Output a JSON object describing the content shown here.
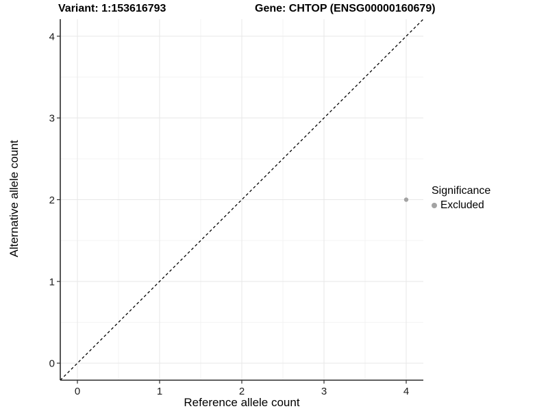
{
  "chart_data": {
    "type": "scatter",
    "title_left": "Variant: 1:153616793",
    "title_right": "Gene: CHTOP (ENSG00000160679)",
    "xlabel": "Reference allele count",
    "ylabel": "Alternative allele count",
    "xlim": [
      -0.2083,
      4.2083
    ],
    "ylim": [
      -0.2083,
      4.2083
    ],
    "xticks": [
      0,
      1,
      2,
      3,
      4
    ],
    "yticks": [
      0,
      1,
      2,
      3,
      4
    ],
    "minor_step": 0.5,
    "grid": true,
    "identity_line": {
      "style": "dashed",
      "dash": "4 3.5"
    },
    "legend": {
      "title": "Significance",
      "position": "right",
      "items": [
        {
          "label": "Excluded",
          "color": "#a3a3a3"
        }
      ]
    },
    "series": [
      {
        "name": "Excluded",
        "color": "#a3a3a3",
        "points": [
          {
            "x": 4,
            "y": 2
          }
        ]
      }
    ],
    "colors": {
      "grid_major": "#e7e7e7",
      "grid_minor": "#f3f3f3",
      "axis": "#2b2b2b",
      "identity_line": "#000000",
      "point": "#a3a3a3"
    }
  }
}
